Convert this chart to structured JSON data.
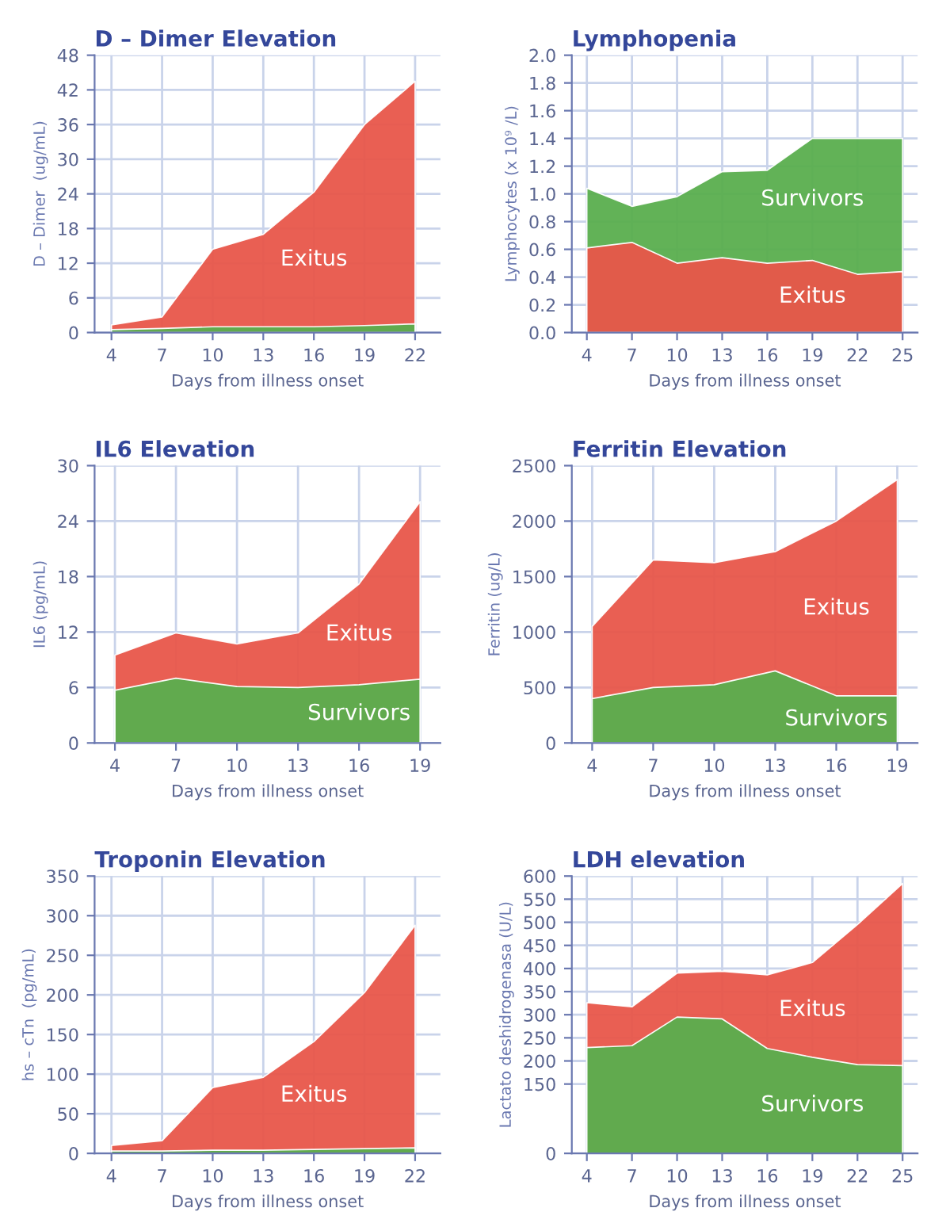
{
  "chart_data": [
    {
      "type": "area",
      "title": "D – Dimer Elevation",
      "xlabel": "Days from illness onset",
      "ylabel": "D – Dimer  (ug/mL)",
      "x": [
        4,
        7,
        10,
        13,
        16,
        19,
        22
      ],
      "xlim": [
        3,
        23.5
      ],
      "xticks": [
        4,
        7,
        10,
        13,
        16,
        19,
        22
      ],
      "ylim": [
        0,
        48
      ],
      "yticks": [
        0,
        6,
        12,
        18,
        24,
        30,
        36,
        42,
        48
      ],
      "grid": true,
      "series": [
        {
          "name": "Exitus",
          "color": "#e8564a",
          "values": [
            1.3,
            2.7,
            14.4,
            17,
            24.3,
            36,
            43.5
          ]
        },
        {
          "color": "#5aae4e",
          "values": [
            0.5,
            0.7,
            1,
            1,
            1,
            1.2,
            1.5
          ]
        }
      ]
    },
    {
      "type": "area",
      "title": "Lymphopenia",
      "xlabel": "Days from illness onset",
      "ylabel": "Lymphocytes (x 10⁹ /L)",
      "x": [
        4,
        7,
        10,
        13,
        16,
        19,
        22,
        25
      ],
      "xlim": [
        3,
        26
      ],
      "xticks": [
        4,
        7,
        10,
        13,
        16,
        19,
        22,
        25
      ],
      "ylim": [
        0,
        2
      ],
      "yticks": [
        {
          "value": 0,
          "label": "0.0"
        },
        {
          "value": 0.2,
          "label": "0.2"
        },
        {
          "value": 0.4,
          "label": "0.4"
        },
        {
          "value": 0.6,
          "label": "0.6"
        },
        {
          "value": 0.8,
          "label": "0.8"
        },
        {
          "value": 1.0,
          "label": "1.0"
        },
        {
          "value": 1.2,
          "label": "1.2"
        },
        {
          "value": 1.4,
          "label": "1.4"
        },
        {
          "value": 1.6,
          "label": "1.6"
        },
        {
          "value": 1.8,
          "label": "1.8"
        },
        {
          "value": 2.0,
          "label": "2.0"
        }
      ],
      "grid": true,
      "series": [
        {
          "name": "Survivors",
          "color": "#5aae4e",
          "values": [
            1.04,
            0.91,
            0.98,
            1.16,
            1.17,
            1.4,
            1.4,
            1.4
          ]
        },
        {
          "name": "Exitus",
          "color": "#e8564a",
          "values": [
            0.61,
            0.65,
            0.5,
            0.54,
            0.5,
            0.52,
            0.42,
            0.44
          ]
        }
      ]
    },
    {
      "type": "area",
      "title": "IL6 Elevation",
      "xlabel": "Days from illness onset",
      "ylabel": "IL6 (pg/mL)",
      "x": [
        4,
        7,
        10,
        13,
        16,
        19
      ],
      "xlim": [
        3,
        20
      ],
      "xticks": [
        4,
        7,
        10,
        13,
        16,
        19
      ],
      "ylim": [
        0,
        30
      ],
      "yticks": [
        0,
        6,
        12,
        18,
        24,
        30
      ],
      "grid": true,
      "series": [
        {
          "name": "Exitus",
          "color": "#e8564a",
          "values": [
            9.5,
            11.9,
            10.7,
            11.9,
            17.2,
            26.1
          ]
        },
        {
          "name": "Survivors",
          "color": "#5aae4e",
          "values": [
            5.7,
            7,
            6.1,
            6,
            6.3,
            6.9
          ]
        }
      ]
    },
    {
      "type": "area",
      "title": "Ferritin Elevation",
      "xlabel": "Days from illness onset",
      "ylabel": "Ferritin (ug/L)",
      "x": [
        4,
        7,
        10,
        13,
        16,
        19
      ],
      "xlim": [
        3,
        20
      ],
      "xticks": [
        4,
        7,
        10,
        13,
        16,
        19
      ],
      "ylim": [
        0,
        2500
      ],
      "yticks": [
        0,
        500,
        1000,
        1500,
        2000,
        2500
      ],
      "grid": true,
      "series": [
        {
          "name": "Exitus",
          "color": "#e8564a",
          "values": [
            1050,
            1650,
            1625,
            1725,
            2000,
            2375
          ]
        },
        {
          "name": "Survivors",
          "color": "#5aae4e",
          "values": [
            400,
            500,
            525,
            650,
            425,
            425
          ]
        }
      ]
    },
    {
      "type": "area",
      "title": "Troponin Elevation",
      "xlabel": "Days from illness onset",
      "ylabel": "hs – cTn  (pg/mL)",
      "x": [
        4,
        7,
        10,
        13,
        16,
        19,
        22
      ],
      "xlim": [
        3,
        23.5
      ],
      "xticks": [
        4,
        7,
        10,
        13,
        16,
        19,
        22
      ],
      "ylim": [
        0,
        350
      ],
      "yticks": [
        0,
        50,
        100,
        150,
        200,
        250,
        300,
        350
      ],
      "grid": true,
      "series": [
        {
          "name": "Exitus",
          "color": "#e8564a",
          "values": [
            10,
            16,
            83,
            96,
            141,
            203,
            288
          ]
        },
        {
          "color": "#5aae4e",
          "values": [
            3,
            3,
            4,
            4,
            5,
            6,
            7
          ]
        }
      ]
    },
    {
      "type": "area",
      "title": "LDH elevation",
      "xlabel": "Days from illness onset",
      "ylabel": "Lactato deshidrogenasa (U/L)",
      "x": [
        4,
        7,
        10,
        13,
        16,
        19,
        22,
        25
      ],
      "xlim": [
        3,
        26
      ],
      "xticks": [
        4,
        7,
        10,
        13,
        16,
        19,
        22,
        25
      ],
      "ylim": [
        0,
        600
      ],
      "yticks": [
        0,
        150,
        200,
        250,
        300,
        350,
        400,
        450,
        500,
        550,
        600
      ],
      "grid": true,
      "series": [
        {
          "name": "Exitus",
          "color": "#e8564a",
          "values": [
            326,
            317,
            390,
            394,
            386,
            413,
            495,
            584
          ]
        },
        {
          "name": "Survivors",
          "color": "#5aae4e",
          "values": [
            229,
            233,
            295,
            291,
            227,
            208,
            192,
            190
          ]
        }
      ]
    }
  ]
}
